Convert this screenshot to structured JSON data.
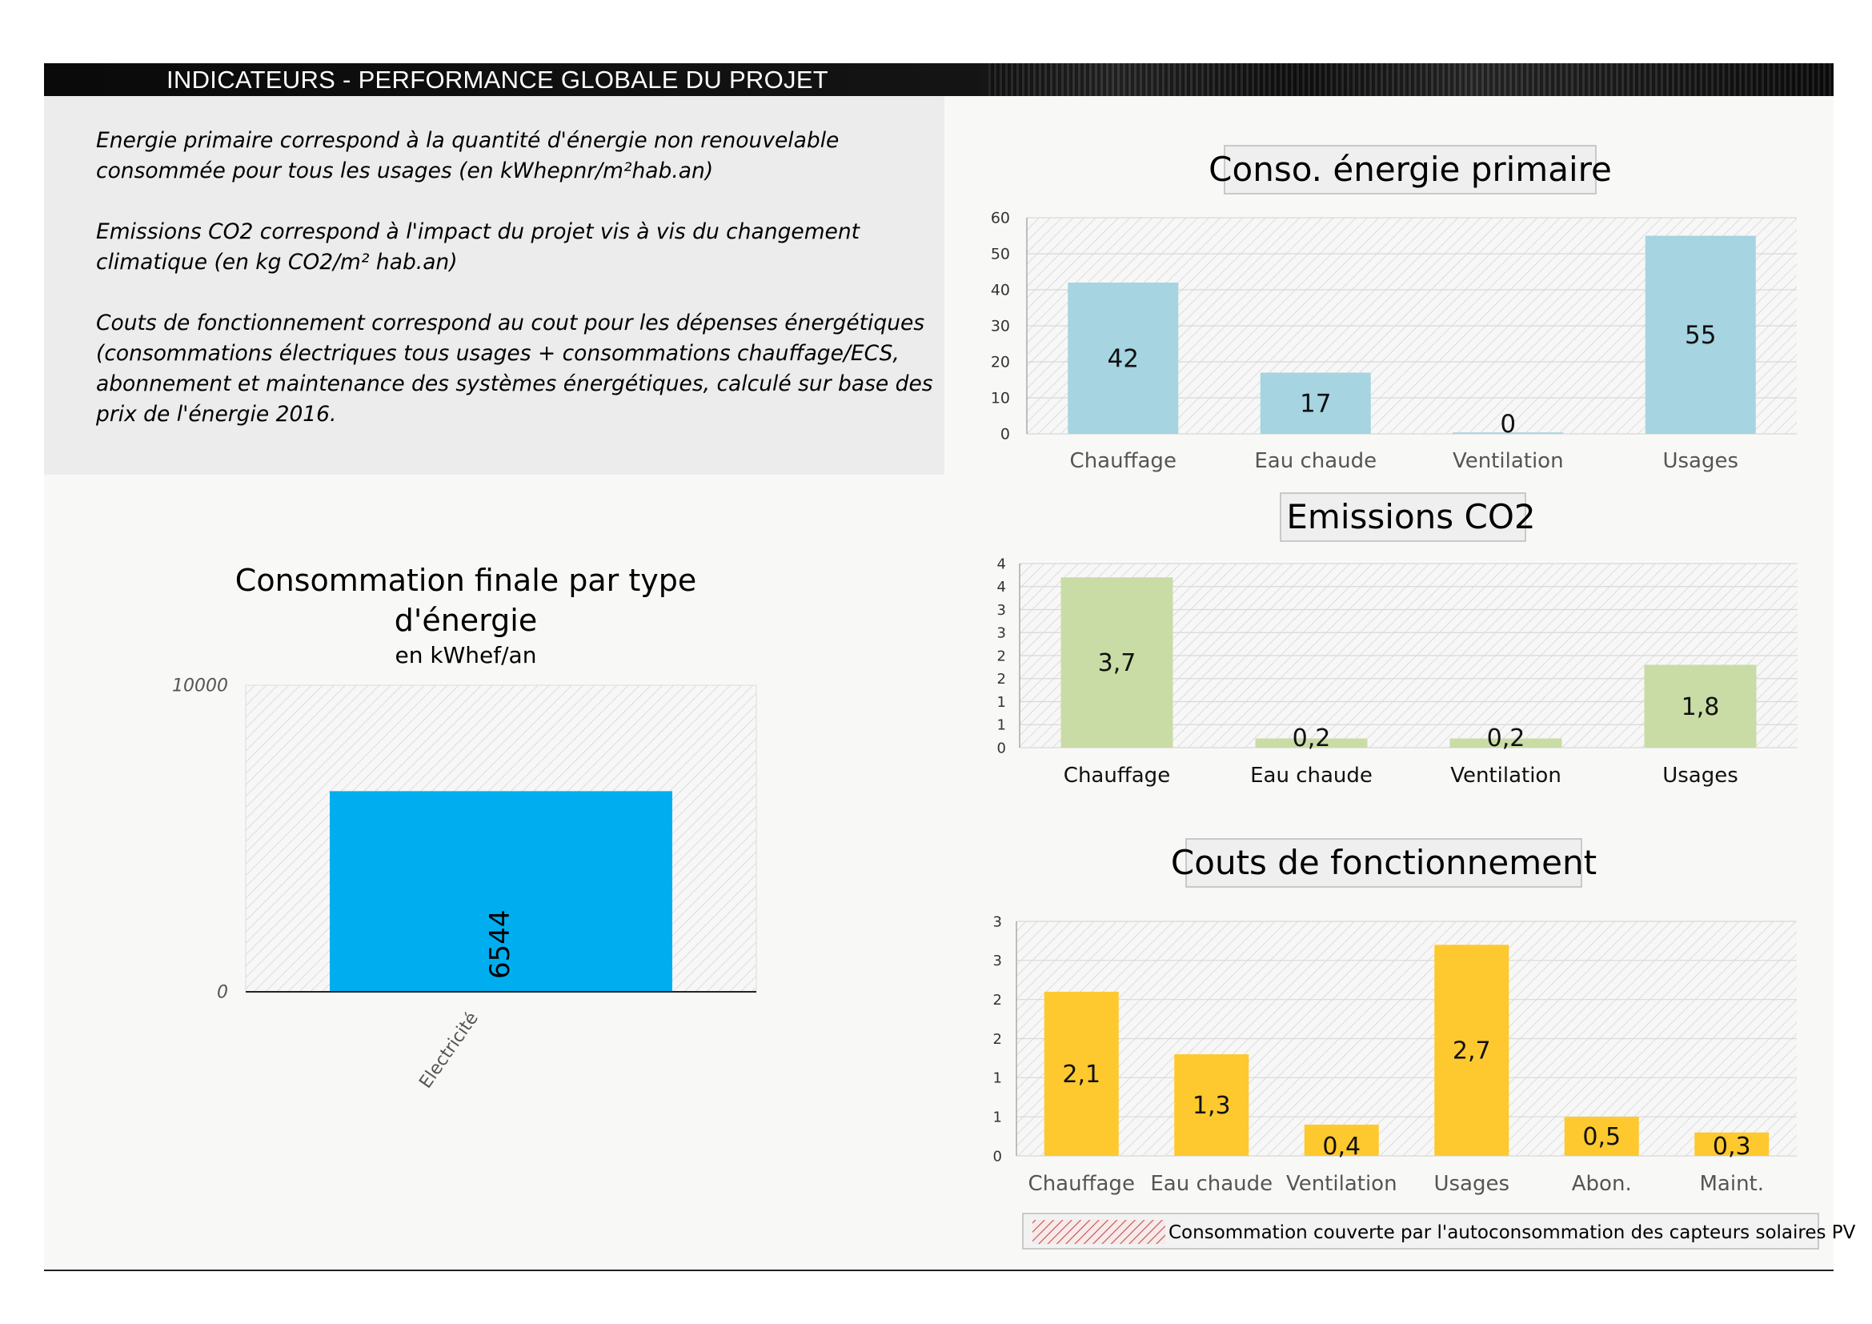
{
  "header": {
    "title": "INDICATEURS - PERFORMANCE GLOBALE DU PROJET"
  },
  "description": {
    "p1": "Energie primaire correspond à la quantité d'énergie non renouvelable consommée pour tous les usages (en kWhepnr/m²hab.an)",
    "p2": "Emissions CO2 correspond à l'impact du projet vis à vis du changement climatique (en kg CO2/m² hab.an)",
    "p3": "Couts de fonctionnement correspond au cout pour les dépenses énergétiques (consommations électriques tous usages + consommations chauffage/ECS, abonnement et maintenance des systèmes énergétiques, calculé sur base des prix de l'énergie 2016."
  },
  "colors": {
    "primary": "#a6d4e1",
    "co2": "#c9dca5",
    "couts": "#fdc92f",
    "finale": "#00aeef",
    "pv_hatch": "#c0504d"
  },
  "chart_data": [
    {
      "id": "finale",
      "type": "bar",
      "title": "Consommation finale par type d'énergie",
      "subtitle": "en kWhef/an",
      "categories": [
        "Electricité"
      ],
      "values": [
        6544
      ],
      "labels": [
        "6544"
      ],
      "ylim": [
        0,
        10000
      ],
      "yticks": [
        "0",
        "10000"
      ],
      "grid": false
    },
    {
      "id": "primaire",
      "type": "bar",
      "title": "Conso. énergie primaire",
      "categories": [
        "Chauffage",
        "Eau chaude",
        "Ventilation",
        "Usages"
      ],
      "values": [
        42,
        17,
        0.4,
        55
      ],
      "labels": [
        "42",
        "17",
        "0",
        "55"
      ],
      "ylim": [
        0,
        60
      ],
      "yticks": [
        "0",
        "10",
        "20",
        "30",
        "40",
        "50",
        "60"
      ],
      "grid": true
    },
    {
      "id": "co2",
      "type": "bar",
      "title": "Emissions CO2",
      "categories": [
        "Chauffage",
        "Eau chaude",
        "Ventilation",
        "Usages"
      ],
      "values": [
        3.7,
        0.2,
        0.2,
        1.8
      ],
      "labels": [
        "3,7",
        "0,2",
        "0,2",
        "1,8"
      ],
      "ylim": [
        0,
        4
      ],
      "yticks": [
        "0",
        "1",
        "1",
        "2",
        "2",
        "3",
        "3",
        "4",
        "4"
      ],
      "grid": true
    },
    {
      "id": "couts",
      "type": "bar",
      "title": "Couts de fonctionnement",
      "categories": [
        "Chauffage",
        "Eau chaude",
        "Ventilation",
        "Usages",
        "Abon.",
        "Maint."
      ],
      "values": [
        2.1,
        1.3,
        0.4,
        2.7,
        0.5,
        0.3
      ],
      "labels": [
        "2,1",
        "1,3",
        "0,4",
        "2,7",
        "0,5",
        "0,3"
      ],
      "ylim": [
        0,
        3
      ],
      "yticks": [
        "0",
        "1",
        "1",
        "2",
        "2",
        "3",
        "3"
      ],
      "grid": true
    }
  ],
  "legend": {
    "label": "Consommation couverte par l'autoconsommation des capteurs solaires PV"
  }
}
